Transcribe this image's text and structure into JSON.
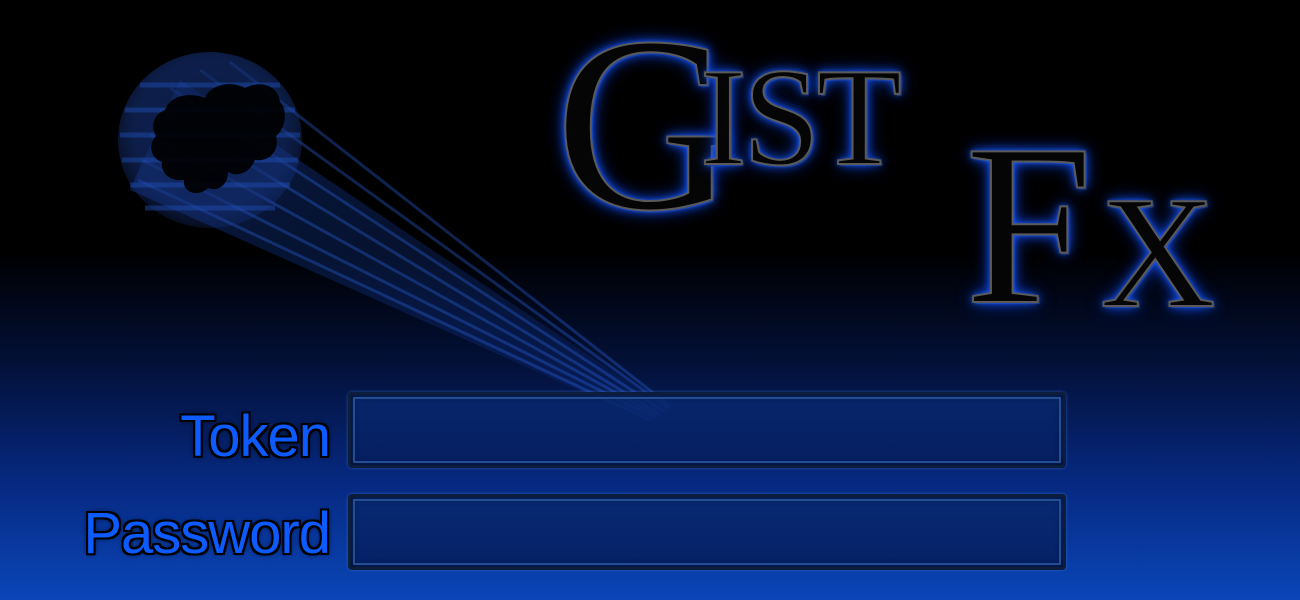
{
  "logo": {
    "part_g": "G",
    "part_ist": "IST",
    "part_f": "F",
    "part_x": "X",
    "glow_color": "#1a5cff"
  },
  "decor": {
    "icon": "comet-mascot-icon",
    "color": "#1a4fd0"
  },
  "form": {
    "token_label": "Token",
    "token_value": "",
    "password_label": "Password",
    "password_value": "",
    "label_color": "#0d5bff"
  }
}
